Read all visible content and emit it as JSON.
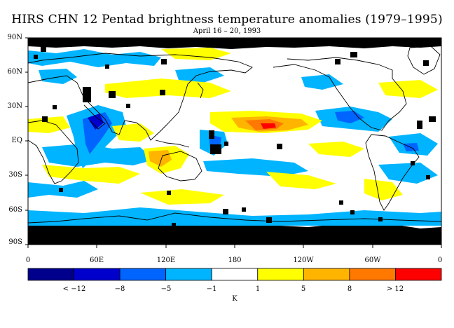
{
  "title": "HIRS CHN 12 Pentad brightness temperature anomalies (1979–1995)",
  "subtitle": "April 16 – 20, 1993",
  "map": {
    "projection": "equirectangular",
    "lon_start": "0",
    "lat_ticks": [
      "90N",
      "60N",
      "30N",
      "EQ",
      "30S",
      "60S",
      "90S"
    ],
    "lon_ticks": [
      "0",
      "60E",
      "120E",
      "180",
      "120W",
      "60W",
      "0"
    ],
    "colors": {
      "missing": "#000000",
      "coastline": "#000000",
      "background": "#ffffff"
    }
  },
  "colorbar": {
    "unit": "K",
    "labels": [
      "< −12",
      "−8",
      "−5",
      "−1",
      "1",
      "5",
      "8",
      "> 12"
    ],
    "colors": [
      "#00008c",
      "#0000cd",
      "#0064ff",
      "#00b4ff",
      "#ffffff",
      "#ffff00",
      "#ffb400",
      "#ff7800",
      "#ff0000"
    ],
    "ranges": [
      "< -12",
      "-12 to -8",
      "-8 to -5",
      "-5 to -1",
      "-1 to 1",
      "1 to 5",
      "5 to 8",
      "8 to 12",
      "> 12"
    ]
  }
}
